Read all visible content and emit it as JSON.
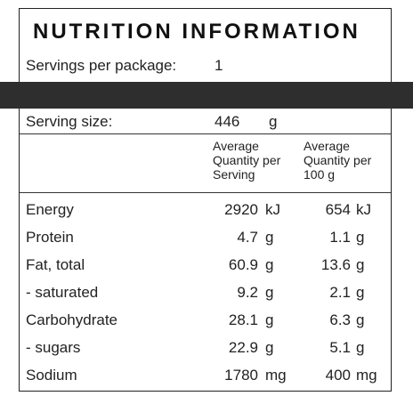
{
  "panel": {
    "title": "NUTRITION INFORMATION",
    "servings_label": "Servings per package:",
    "servings_value": "1",
    "serving_size_label": "Serving size:",
    "serving_size_value": "446",
    "serving_size_unit": "g",
    "col_per_serving": [
      "Average",
      "Quantity per",
      "Serving"
    ],
    "col_per_100g": [
      "Average",
      "Quantity per",
      "100 g"
    ]
  },
  "rows": [
    {
      "name": "Energy",
      "serving": "2920",
      "serving_unit": "kJ",
      "per100": "654",
      "per100_unit": "kJ"
    },
    {
      "name": "Protein",
      "serving": "4.7",
      "serving_unit": "g",
      "per100": "1.1",
      "per100_unit": "g"
    },
    {
      "name": "Fat, total",
      "serving": "60.9",
      "serving_unit": "g",
      "per100": "13.6",
      "per100_unit": "g"
    },
    {
      "name": "- saturated",
      "serving": "9.2",
      "serving_unit": "g",
      "per100": "2.1",
      "per100_unit": "g"
    },
    {
      "name": "Carbohydrate",
      "serving": "28.1",
      "serving_unit": "g",
      "per100": "6.3",
      "per100_unit": "g"
    },
    {
      "name": "- sugars",
      "serving": "22.9",
      "serving_unit": "g",
      "per100": "5.1",
      "per100_unit": "g"
    },
    {
      "name": "Sodium",
      "serving": "1780",
      "serving_unit": "mg",
      "per100": "400",
      "per100_unit": "mg"
    }
  ]
}
